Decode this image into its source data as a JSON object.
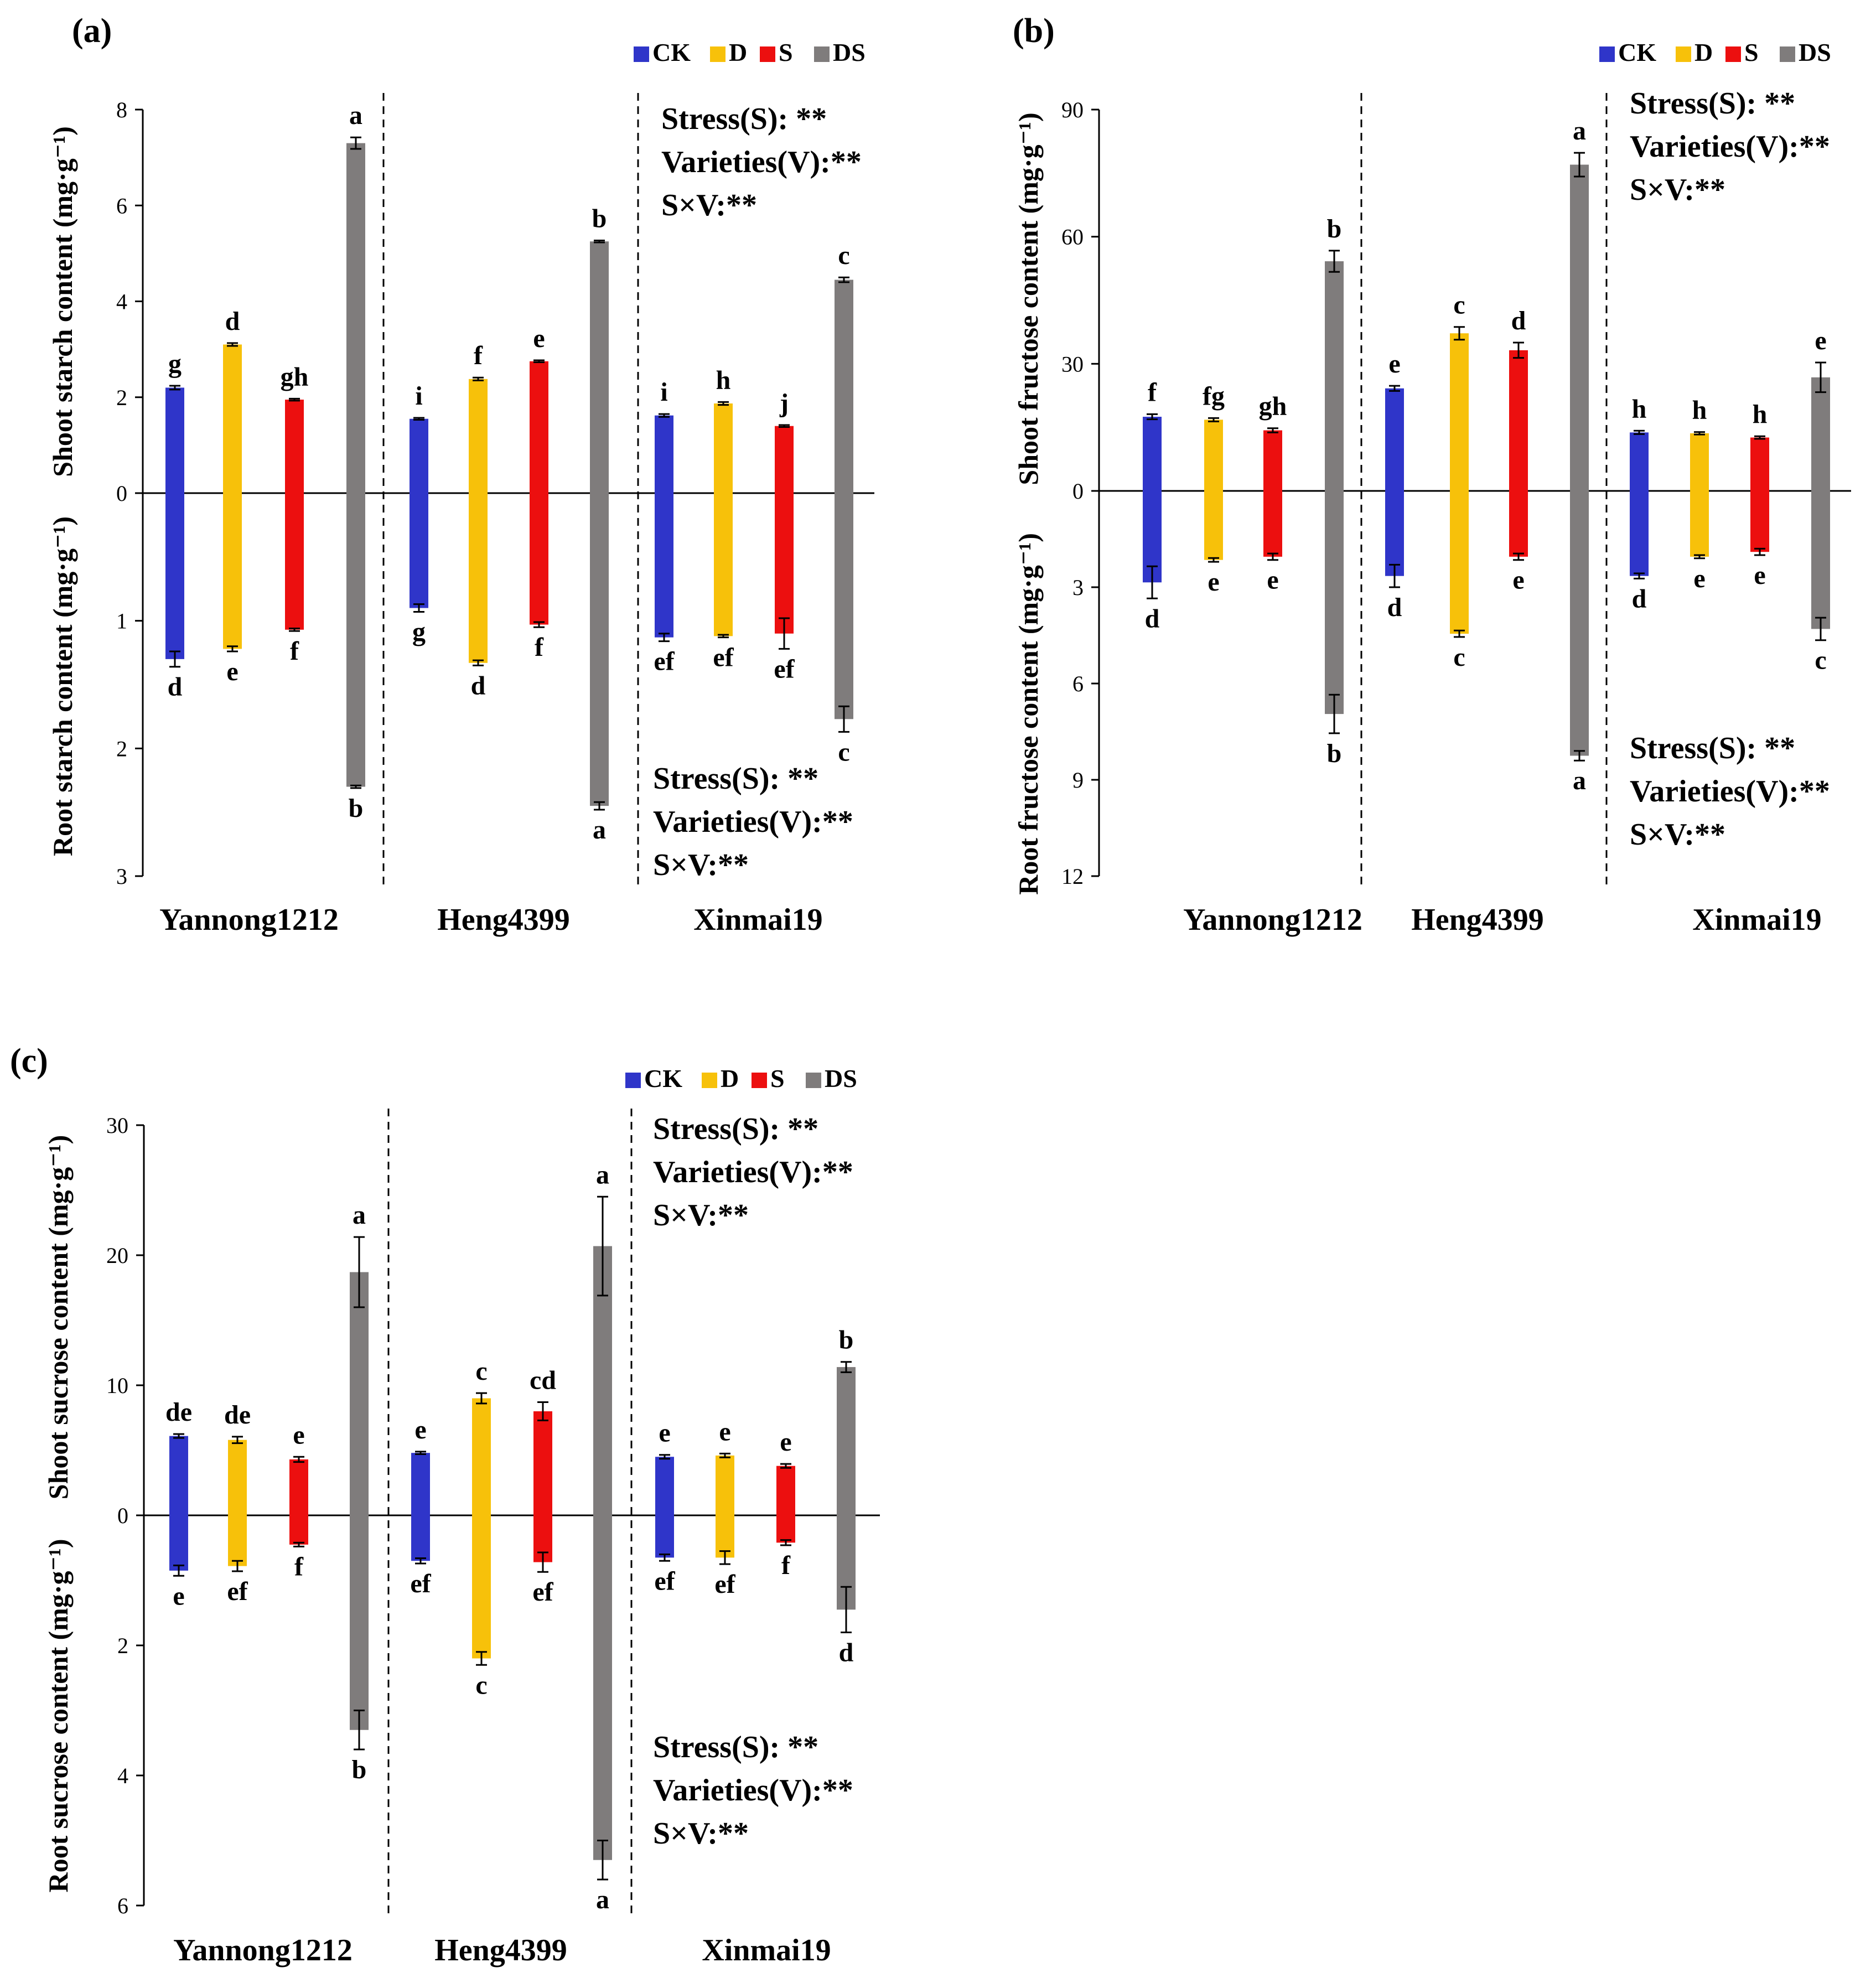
{
  "figure_title": "",
  "legend": [
    {
      "label": "CK",
      "color": "#2f35c9"
    },
    {
      "label": "D",
      "color": "#f7c10a"
    },
    {
      "label": "S",
      "color": "#ec0f0f"
    },
    {
      "label": "DS",
      "color": "#7f7c7c"
    }
  ],
  "chart_data": [
    {
      "panel": "(a)",
      "type": "bar",
      "shoot_label": "Shoot starch content (mg·g⁻¹)",
      "root_label": "Root starch content (mg·g⁻¹)",
      "shoot_ticks": [
        "8",
        "6",
        "4",
        "2",
        "0"
      ],
      "root_ticks": [
        "1",
        "2",
        "3"
      ],
      "shoot_tick_values": [
        8,
        6,
        4,
        2,
        0
      ],
      "root_tick_values": [
        1,
        2,
        3
      ],
      "shoot_ylim": [
        0,
        8
      ],
      "root_ylim": [
        0,
        3
      ],
      "categories": [
        "Yannong1212",
        "Heng4399",
        "Xinmai19"
      ],
      "series": [
        {
          "name": "CK",
          "shoot": [
            2.2,
            1.55,
            1.62
          ],
          "shoot_err": [
            0.04,
            0.02,
            0.03
          ],
          "root": [
            1.3,
            0.9,
            1.13
          ],
          "root_err": [
            0.06,
            0.03,
            0.03
          ],
          "shoot_letters": [
            "g",
            "i",
            "i"
          ],
          "root_letters": [
            "d",
            "g",
            "ef"
          ]
        },
        {
          "name": "D",
          "shoot": [
            3.1,
            2.38,
            1.87
          ],
          "shoot_err": [
            0.03,
            0.03,
            0.03
          ],
          "root": [
            1.22,
            1.33,
            1.12
          ],
          "root_err": [
            0.02,
            0.02,
            0.01
          ],
          "shoot_letters": [
            "d",
            "f",
            "h"
          ],
          "root_letters": [
            "e",
            "d",
            "ef"
          ]
        },
        {
          "name": "S",
          "shoot": [
            1.95,
            2.75,
            1.4
          ],
          "shoot_err": [
            0.02,
            0.02,
            0.02
          ],
          "root": [
            1.07,
            1.03,
            1.1
          ],
          "root_err": [
            0.01,
            0.02,
            0.12
          ],
          "shoot_letters": [
            "gh",
            "e",
            "j"
          ],
          "root_letters": [
            "f",
            "f",
            "ef"
          ]
        },
        {
          "name": "DS",
          "shoot": [
            7.3,
            5.25,
            4.45
          ],
          "shoot_err": [
            0.12,
            0.02,
            0.05
          ],
          "root": [
            2.3,
            2.45,
            1.77
          ],
          "root_err": [
            0.01,
            0.03,
            0.1
          ],
          "shoot_letters": [
            "a",
            "b",
            "c"
          ],
          "root_letters": [
            "b",
            "a",
            "c"
          ]
        }
      ],
      "shoot_stats": [
        "Stress(S):   **",
        "Varieties(V):**",
        "S×V:**"
      ],
      "root_stats": [
        "Stress(S):   **",
        "Varieties(V):**",
        "S×V:**"
      ]
    },
    {
      "panel": "(b)",
      "type": "bar",
      "shoot_label": "Shoot fructose content (mg·g⁻¹)",
      "root_label": "Root fructose content (mg·g⁻¹)",
      "shoot_ticks": [
        "90",
        "60",
        "30",
        "0"
      ],
      "root_ticks": [
        "3",
        "6",
        "9",
        "12"
      ],
      "shoot_tick_values": [
        90,
        60,
        30,
        0
      ],
      "root_tick_values": [
        3,
        6,
        9,
        12
      ],
      "shoot_ylim": [
        0,
        90
      ],
      "root_ylim": [
        0,
        12
      ],
      "categories": [
        "Yannong1212",
        "Heng4399",
        "Xinmai19"
      ],
      "series": [
        {
          "name": "CK",
          "shoot": [
            17.5,
            24.2,
            13.8
          ],
          "shoot_err": [
            0.6,
            0.6,
            0.4
          ],
          "root": [
            2.85,
            2.65,
            2.65
          ],
          "root_err": [
            0.5,
            0.35,
            0.08
          ],
          "shoot_letters": [
            "f",
            "e",
            "h"
          ],
          "root_letters": [
            "d",
            "d",
            "d"
          ]
        },
        {
          "name": "D",
          "shoot": [
            16.8,
            37.2,
            13.6
          ],
          "shoot_err": [
            0.4,
            1.5,
            0.3
          ],
          "root": [
            2.15,
            4.45,
            2.05
          ],
          "root_err": [
            0.06,
            0.1,
            0.05
          ],
          "shoot_letters": [
            "fg",
            "c",
            "h"
          ],
          "root_letters": [
            "e",
            "c",
            "e"
          ]
        },
        {
          "name": "S",
          "shoot": [
            14.3,
            33.2,
            12.6
          ],
          "shoot_err": [
            0.5,
            1.8,
            0.3
          ],
          "root": [
            2.05,
            2.05,
            1.9
          ],
          "root_err": [
            0.1,
            0.1,
            0.1
          ],
          "shoot_letters": [
            "gh",
            "d",
            "h"
          ],
          "root_letters": [
            "e",
            "e",
            "e"
          ]
        },
        {
          "name": "DS",
          "shoot": [
            54.2,
            77.0,
            26.8
          ],
          "shoot_err": [
            2.5,
            2.8,
            3.5
          ],
          "root": [
            6.95,
            8.25,
            4.3
          ],
          "root_err": [
            0.6,
            0.15,
            0.35
          ],
          "shoot_letters": [
            "b",
            "a",
            "e"
          ],
          "root_letters": [
            "b",
            "a",
            "c"
          ]
        }
      ],
      "shoot_stats": [
        "Stress(S):   **",
        "Varieties(V):**",
        "S×V:**"
      ],
      "root_stats": [
        "Stress(S):   **",
        "Varieties(V):**",
        "S×V:**"
      ]
    },
    {
      "panel": "(c)",
      "type": "bar",
      "shoot_label": "Shoot sucrose content (mg·g⁻¹)",
      "root_label": "Root sucrose content (mg·g⁻¹)",
      "shoot_ticks": [
        "30",
        "20",
        "10",
        "0"
      ],
      "root_ticks": [
        "2",
        "4",
        "6"
      ],
      "shoot_tick_values": [
        30,
        20,
        10,
        0
      ],
      "root_tick_values": [
        2,
        4,
        6
      ],
      "shoot_ylim": [
        0,
        30
      ],
      "root_ylim": [
        0,
        6
      ],
      "categories": [
        "Yannong1212",
        "Heng4399",
        "Xinmai19"
      ],
      "series": [
        {
          "name": "CK",
          "shoot": [
            6.1,
            4.8,
            4.5
          ],
          "shoot_err": [
            0.15,
            0.1,
            0.15
          ],
          "root": [
            0.85,
            0.7,
            0.65
          ],
          "root_err": [
            0.08,
            0.04,
            0.05
          ],
          "shoot_letters": [
            "de",
            "e",
            "e"
          ],
          "root_letters": [
            "e",
            "ef",
            "ef"
          ]
        },
        {
          "name": "D",
          "shoot": [
            5.8,
            9.0,
            4.6
          ],
          "shoot_err": [
            0.25,
            0.4,
            0.15
          ],
          "root": [
            0.78,
            2.2,
            0.65
          ],
          "root_err": [
            0.08,
            0.1,
            0.1
          ],
          "shoot_letters": [
            "de",
            "c",
            "e"
          ],
          "root_letters": [
            "ef",
            "c",
            "ef"
          ]
        },
        {
          "name": "S",
          "shoot": [
            4.3,
            8.0,
            3.8
          ],
          "shoot_err": [
            0.2,
            0.7,
            0.15
          ],
          "root": [
            0.45,
            0.72,
            0.42
          ],
          "root_err": [
            0.03,
            0.15,
            0.04
          ],
          "shoot_letters": [
            "e",
            "cd",
            "e"
          ],
          "root_letters": [
            "f",
            "ef",
            "f"
          ]
        },
        {
          "name": "DS",
          "shoot": [
            18.7,
            20.7,
            11.4
          ],
          "shoot_err": [
            2.7,
            3.8,
            0.4
          ],
          "root": [
            3.3,
            5.3,
            1.45
          ],
          "root_err": [
            0.3,
            0.3,
            0.35
          ],
          "shoot_letters": [
            "a",
            "a",
            "b"
          ],
          "root_letters": [
            "b",
            "a",
            "d"
          ]
        }
      ],
      "shoot_stats": [
        "Stress(S):   **",
        "Varieties(V):**",
        "S×V:**"
      ],
      "root_stats": [
        "Stress(S):   **",
        "Varieties(V):**",
        "S×V:**"
      ]
    }
  ]
}
